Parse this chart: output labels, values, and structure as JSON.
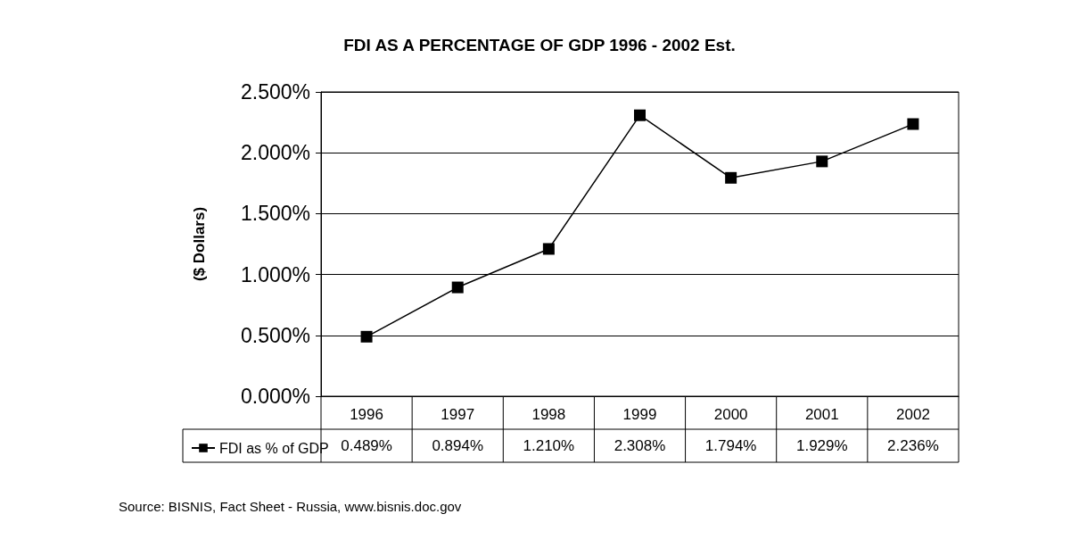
{
  "chart_data": {
    "type": "line",
    "title": "FDI AS A PERCENTAGE OF GDP 1996 - 2002 Est.",
    "ylabel": "($ Dollars)",
    "categories": [
      "1996",
      "1997",
      "1998",
      "1999",
      "2000",
      "2001",
      "2002"
    ],
    "series": [
      {
        "name": "FDI as % of GDP",
        "color": "#000000",
        "values": [
          0.489,
          0.894,
          1.21,
          2.308,
          1.794,
          1.929,
          2.236
        ],
        "value_labels": [
          "0.489%",
          "0.894%",
          "1.210%",
          "2.308%",
          "1.794%",
          "1.929%",
          "2.236%"
        ]
      }
    ],
    "ylim": [
      0,
      2.5
    ],
    "yticks": [
      {
        "value": 0,
        "label": "0.000%"
      },
      {
        "value": 0.5,
        "label": "0.500%"
      },
      {
        "value": 1,
        "label": "1.000%"
      },
      {
        "value": 1.5,
        "label": "1.500%"
      },
      {
        "value": 2,
        "label": "2.000%"
      },
      {
        "value": 2.5,
        "label": "2.500%"
      }
    ],
    "grid": "y",
    "legend": "bottom left",
    "marker": "square",
    "line_style": "solid",
    "annotations": [
      "Source: BISNIS, Fact Sheet - Russia, www.bisnis.doc.gov"
    ]
  }
}
